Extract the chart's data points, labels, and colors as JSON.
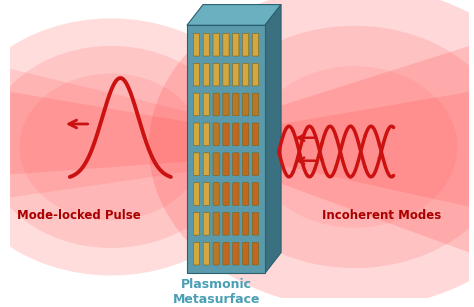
{
  "bg_color": "#ffffff",
  "label_plasmonic": "Plasmonic\nMetasurface",
  "label_mode_locked": "Mode-locked Pulse",
  "label_incoherent": "Incoherent Modes",
  "label_color": "#4a9fb5",
  "label_red": "#aa0000",
  "panel_face_color": "#5a9aaa",
  "panel_right_color": "#3a7080",
  "panel_top_color": "#6ab0c0",
  "nanorod_gold": "#d4a840",
  "nanorod_orange": "#c06820",
  "nanorod_mid": "#b87828",
  "beam_color": "#cc1111",
  "grid_rows": 8,
  "grid_cols": 7,
  "fig_width": 4.74,
  "fig_height": 3.07,
  "dpi": 100
}
